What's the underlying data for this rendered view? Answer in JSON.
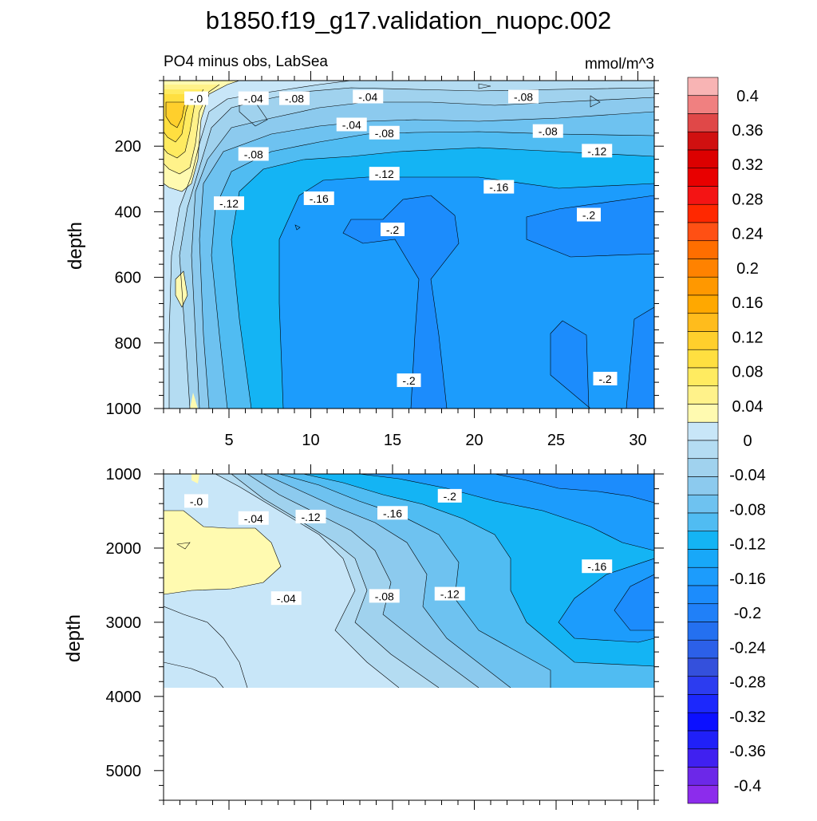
{
  "chart_data": {
    "type": "heatmap",
    "title": "b1850.f19_g17.validation_nuopc.002",
    "subtitle_left": "PO4 minus obs, LabSea",
    "subtitle_right": "mmol/m^3",
    "panels": [
      {
        "name": "upper",
        "ylabel": "depth",
        "ylim": [
          1000,
          0
        ],
        "xlim": [
          1,
          31
        ],
        "xticks": [
          "5",
          "10",
          "15",
          "20",
          "25",
          "30"
        ],
        "yticks": [
          "200",
          "400",
          "600",
          "800",
          "1000"
        ],
        "contour_labels": [
          {
            "text": "-.0",
            "x": 3.0,
            "y": 55
          },
          {
            "text": "-.04",
            "x": 6.5,
            "y": 55
          },
          {
            "text": "-.08",
            "x": 9.0,
            "y": 55
          },
          {
            "text": "-.04",
            "x": 13.5,
            "y": 50
          },
          {
            "text": "-.08",
            "x": 23.0,
            "y": 50
          },
          {
            "text": "-.04",
            "x": 12.5,
            "y": 135
          },
          {
            "text": "-.08",
            "x": 14.5,
            "y": 160
          },
          {
            "text": "-.08",
            "x": 24.5,
            "y": 155
          },
          {
            "text": "-.12",
            "x": 27.5,
            "y": 215
          },
          {
            "text": "-.08",
            "x": 6.5,
            "y": 225
          },
          {
            "text": "-.12",
            "x": 14.5,
            "y": 285
          },
          {
            "text": "-.16",
            "x": 21.5,
            "y": 325
          },
          {
            "text": "-.16",
            "x": 10.5,
            "y": 360
          },
          {
            "text": "-.12",
            "x": 5.0,
            "y": 375
          },
          {
            "text": "-.2",
            "x": 15.0,
            "y": 455
          },
          {
            "text": "-.2",
            "x": 27.0,
            "y": 410
          },
          {
            "text": "-.2",
            "x": 16.0,
            "y": 915
          },
          {
            "text": "-.2",
            "x": 28.0,
            "y": 910
          }
        ]
      },
      {
        "name": "lower",
        "ylabel": "depth",
        "ylim": [
          5400,
          1000
        ],
        "xlim": [
          1,
          31
        ],
        "yticks": [
          "1000",
          "2000",
          "3000",
          "4000",
          "5000"
        ],
        "data_bottom": 3850,
        "contour_labels": [
          {
            "text": "-.0",
            "x": 3.0,
            "y": 1370
          },
          {
            "text": "-.04",
            "x": 6.5,
            "y": 1600
          },
          {
            "text": "-.12",
            "x": 10.0,
            "y": 1580
          },
          {
            "text": "-.16",
            "x": 15.0,
            "y": 1530
          },
          {
            "text": "-.2",
            "x": 18.5,
            "y": 1300
          },
          {
            "text": "-.16",
            "x": 27.5,
            "y": 2250
          },
          {
            "text": "-.04",
            "x": 8.5,
            "y": 2680
          },
          {
            "text": "-.08",
            "x": 14.5,
            "y": 2650
          },
          {
            "text": "-.12",
            "x": 18.5,
            "y": 2620
          }
        ]
      }
    ],
    "colorbar": {
      "levels": [
        0.4,
        0.36,
        0.32,
        0.28,
        0.24,
        0.2,
        0.16,
        0.12,
        0.08,
        0.04,
        0,
        -0.04,
        -0.08,
        -0.12,
        -0.16,
        -0.2,
        -0.24,
        -0.28,
        -0.32,
        -0.36,
        -0.4
      ],
      "labels": [
        "0.4",
        "0.36",
        "0.32",
        "0.28",
        "0.24",
        "0.2",
        "0.16",
        "0.12",
        "0.08",
        "0.04",
        "0",
        "-0.04",
        "-0.08",
        "-0.12",
        "-0.16",
        "-0.2",
        "-0.24",
        "-0.28",
        "-0.32",
        "-0.36",
        "-0.4"
      ],
      "colors": [
        "#f8b4b4",
        "#f08080",
        "#e04848",
        "#d01010",
        "#dc0000",
        "#e80000",
        "#f41414",
        "#ff2800",
        "#ff5014",
        "#ff6e00",
        "#ff8200",
        "#ff9800",
        "#ffa800",
        "#ffbc1c",
        "#ffcf2c",
        "#ffdf40",
        "#ffeb60",
        "#fff28a",
        "#fffab0",
        "#c8e6f8",
        "#b4dcf2",
        "#a0d2ee",
        "#8ccaee",
        "#6ec2f0",
        "#50bcf2",
        "#14b4f4",
        "#18a8f8",
        "#1c9cfc",
        "#1c8cfc",
        "#2080f8",
        "#2470f0",
        "#2c60e8",
        "#3450dc",
        "#2c3cf0",
        "#1c28fc",
        "#0c10ff",
        "#2020f8",
        "#4020f0",
        "#6c28e8",
        "#8c2cec"
      ]
    }
  }
}
